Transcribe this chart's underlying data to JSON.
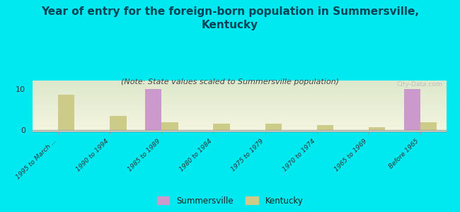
{
  "title": "Year of entry for the foreign-born population in Summersville,\nKentucky",
  "subtitle": "(Note: State values scaled to Summersville population)",
  "categories": [
    "1995 to March ...",
    "1990 to 1994",
    "1985 to 1989",
    "1980 to 1984",
    "1975 to 1979",
    "1970 to 1974",
    "1965 to 1969",
    "Before 1965"
  ],
  "summersville_values": [
    0,
    0,
    10,
    0,
    0,
    0,
    0,
    10
  ],
  "kentucky_values": [
    8.5,
    3.5,
    2.0,
    1.5,
    1.5,
    1.2,
    0.8,
    2.0
  ],
  "summersville_color": "#cc99cc",
  "kentucky_color": "#cccc88",
  "background_color": "#00e8f0",
  "grad_color_bottom": "#f5f5e0",
  "grad_color_top": "#dde8cc",
  "ylim": [
    -0.3,
    12
  ],
  "yticks": [
    0,
    10
  ],
  "bar_width": 0.32,
  "title_fontsize": 11,
  "subtitle_fontsize": 8,
  "watermark": "City-Data.com",
  "legend_summersville": "Summersville",
  "legend_kentucky": "Kentucky"
}
